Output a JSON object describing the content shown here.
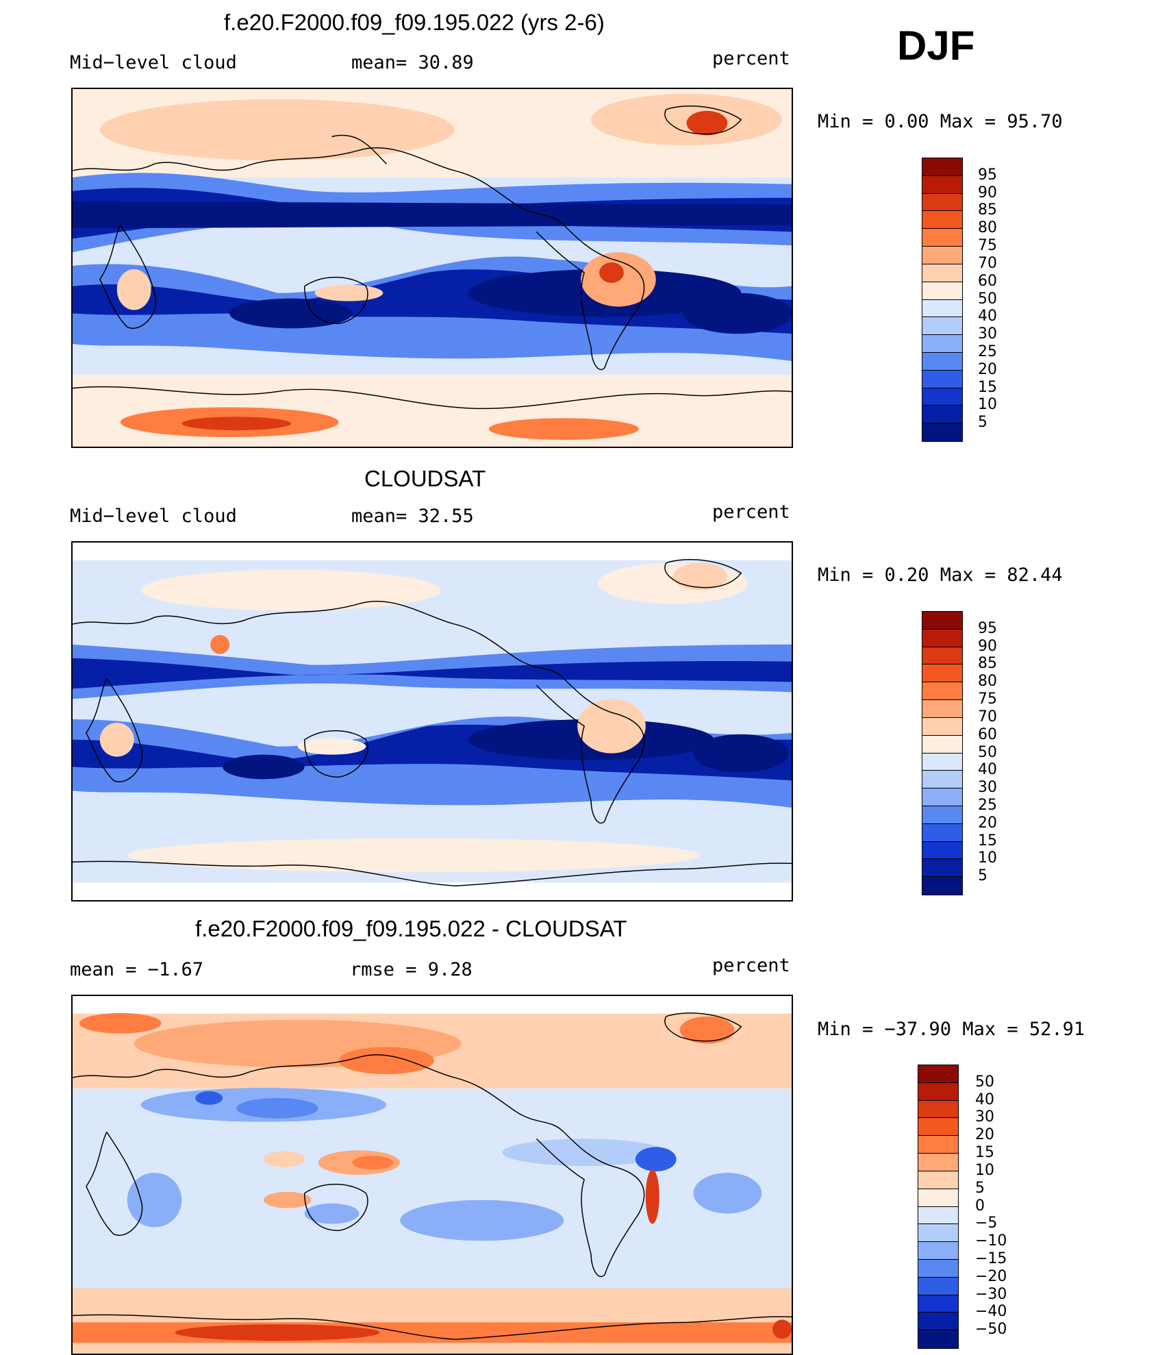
{
  "season": "DJF",
  "panels": [
    {
      "title": "f.e20.F2000.f09_f09.195.022 (yrs 2-6)",
      "left_label": "Mid−level cloud",
      "mid_label": "mean=  30.89",
      "units": "percent",
      "range_text": "Min  =     0.00  Max  =   95.70",
      "levels": [
        "95",
        "90",
        "85",
        "80",
        "75",
        "70",
        "60",
        "50",
        "40",
        "30",
        "25",
        "20",
        "15",
        "10",
        "5"
      ],
      "colors": [
        "#8b0a04",
        "#b81c08",
        "#db3a12",
        "#f2581e",
        "#ff7d40",
        "#ffa878",
        "#ffd1b0",
        "#fdeee0",
        "#dbe8fb",
        "#b3cdfa",
        "#8aaff8",
        "#5a88f2",
        "#2f5de6",
        "#1235cf",
        "#0520a6",
        "#021480"
      ]
    },
    {
      "title": "CLOUDSAT",
      "left_label": "Mid−level cloud",
      "mid_label": "mean=  32.55",
      "units": "percent",
      "range_text": "Min  =     0.20  Max  =   82.44",
      "levels": [
        "95",
        "90",
        "85",
        "80",
        "75",
        "70",
        "60",
        "50",
        "40",
        "30",
        "25",
        "20",
        "15",
        "10",
        "5"
      ],
      "colors": [
        "#8b0a04",
        "#b81c08",
        "#db3a12",
        "#f2581e",
        "#ff7d40",
        "#ffa878",
        "#ffd1b0",
        "#fdeee0",
        "#dbe8fb",
        "#b3cdfa",
        "#8aaff8",
        "#5a88f2",
        "#2f5de6",
        "#1235cf",
        "#0520a6",
        "#021480"
      ]
    },
    {
      "title": "f.e20.F2000.f09_f09.195.022 - CLOUDSAT",
      "left_label": "mean  =   −1.67",
      "mid_label": "rmse  =    9.28",
      "units": "percent",
      "range_text": "Min  = −37.90  Max  =   52.91",
      "levels": [
        "50",
        "40",
        "30",
        "20",
        "15",
        "10",
        "5",
        "0",
        "−5",
        "−10",
        "−15",
        "−20",
        "−30",
        "−40",
        "−50"
      ],
      "colors": [
        "#8b0a04",
        "#b81c08",
        "#db3a12",
        "#f2581e",
        "#ff7d40",
        "#ffa878",
        "#ffd1b0",
        "#fdeee0",
        "#dbe8fb",
        "#b3cdfa",
        "#8aaff8",
        "#5a88f2",
        "#2f5de6",
        "#1235cf",
        "#0520a6",
        "#021480"
      ]
    }
  ]
}
